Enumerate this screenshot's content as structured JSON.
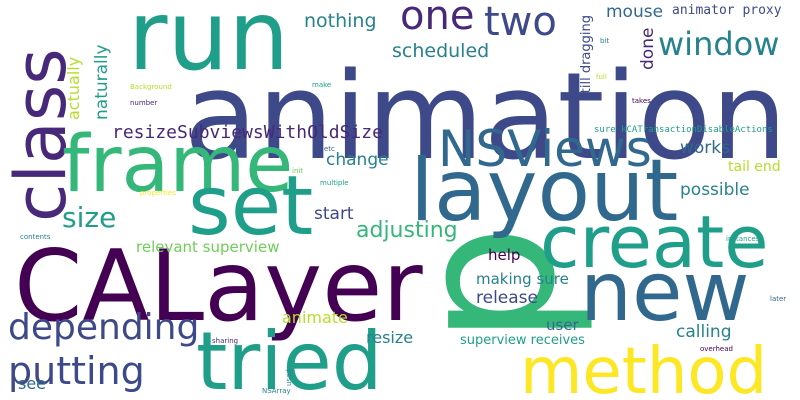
{
  "words": [
    {
      "id": "animation",
      "text": "animation"
    },
    {
      "id": "p",
      "text": "p"
    },
    {
      "id": "run",
      "text": "run"
    },
    {
      "id": "class",
      "text": "class"
    },
    {
      "id": "frame",
      "text": "frame"
    },
    {
      "id": "set",
      "text": "set"
    },
    {
      "id": "layout",
      "text": "layout"
    },
    {
      "id": "calayer",
      "text": "CALayer"
    },
    {
      "id": "create",
      "text": "create"
    },
    {
      "id": "new",
      "text": "new"
    },
    {
      "id": "tried",
      "text": "tried"
    },
    {
      "id": "method",
      "text": "method"
    },
    {
      "id": "nsviews",
      "text": "NSViews"
    },
    {
      "id": "window",
      "text": "window"
    },
    {
      "id": "one",
      "text": "one"
    },
    {
      "id": "two",
      "text": "two"
    },
    {
      "id": "depending",
      "text": "depending"
    },
    {
      "id": "putting",
      "text": "putting"
    },
    {
      "id": "size",
      "text": "size"
    },
    {
      "id": "adjusting",
      "text": "adjusting"
    },
    {
      "id": "resizeSubviewsWithOldSize",
      "text": "resizeSubviewsWithOldSize"
    },
    {
      "id": "nothing",
      "text": "nothing"
    },
    {
      "id": "scheduled",
      "text": "scheduled"
    },
    {
      "id": "mouse",
      "text": "mouse"
    },
    {
      "id": "done",
      "text": "done"
    },
    {
      "id": "animator_proxy",
      "text": "animator proxy"
    },
    {
      "id": "still_dragging",
      "text": "still dragging"
    },
    {
      "id": "naturally",
      "text": "naturally"
    },
    {
      "id": "actually",
      "text": "actually"
    },
    {
      "id": "change",
      "text": "change"
    },
    {
      "id": "works",
      "text": "works"
    },
    {
      "id": "tail_end",
      "text": "tail end"
    },
    {
      "id": "possible",
      "text": "possible"
    },
    {
      "id": "start",
      "text": "start"
    },
    {
      "id": "relevant_superview",
      "text": "relevant superview"
    },
    {
      "id": "help",
      "text": "help"
    },
    {
      "id": "making_sure",
      "text": "making sure"
    },
    {
      "id": "release",
      "text": "release"
    },
    {
      "id": "animate",
      "text": "animate"
    },
    {
      "id": "user",
      "text": "user"
    },
    {
      "id": "resize",
      "text": "resize"
    },
    {
      "id": "calling",
      "text": "calling"
    },
    {
      "id": "superview_receives",
      "text": "superview receives"
    },
    {
      "id": "see",
      "text": "see"
    },
    {
      "id": "sure_kCATransactionDisableActions",
      "text": "sure kCATransactionDisableActions"
    },
    {
      "id": "bit",
      "text": "bit"
    },
    {
      "id": "full",
      "text": "full"
    },
    {
      "id": "takes",
      "text": "takes"
    },
    {
      "id": "make",
      "text": "make"
    },
    {
      "id": "background",
      "text": "Background"
    },
    {
      "id": "number",
      "text": "number"
    },
    {
      "id": "etc",
      "text": "etc"
    },
    {
      "id": "init",
      "text": "init"
    },
    {
      "id": "multiple",
      "text": "multiple"
    },
    {
      "id": "properties",
      "text": "properties"
    },
    {
      "id": "contents",
      "text": "contents"
    },
    {
      "id": "instances",
      "text": "instances"
    },
    {
      "id": "sharing",
      "text": "sharing"
    },
    {
      "id": "later",
      "text": "later"
    },
    {
      "id": "overhead",
      "text": "overhead"
    },
    {
      "id": "used",
      "text": "used"
    },
    {
      "id": "nsarray",
      "text": "NSArray"
    }
  ],
  "colors": {
    "darkPurple": "#440154",
    "purple": "#482878",
    "indigo": "#3e4989",
    "blue": "#31688e",
    "steel": "#26828e",
    "teal": "#1f9e89",
    "green": "#35b779",
    "lime": "#6ece58",
    "yellowGreen": "#b5de2b",
    "yellow": "#fde725"
  }
}
